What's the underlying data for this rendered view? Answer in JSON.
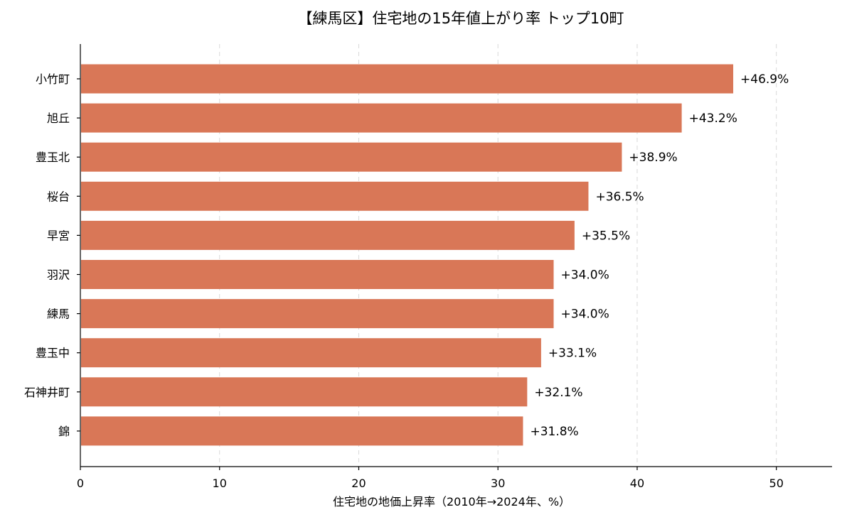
{
  "chart_data": {
    "type": "bar",
    "orientation": "horizontal",
    "title": "【練馬区】住宅地の15年値上がり率 トップ10町",
    "xlabel": "住宅地の地価上昇率（2010年→2024年、%）",
    "ylabel": "",
    "xlim": [
      0,
      54
    ],
    "xticks": [
      0,
      10,
      20,
      30,
      40,
      50
    ],
    "grid": "vertical dashed",
    "categories": [
      "小竹町",
      "旭丘",
      "豊玉北",
      "桜台",
      "早宮",
      "羽沢",
      "練馬",
      "豊玉中",
      "石神井町",
      "錦"
    ],
    "values": [
      46.9,
      43.2,
      38.9,
      36.5,
      35.5,
      34.0,
      34.0,
      33.1,
      32.1,
      31.8
    ],
    "value_labels": [
      "+46.9%",
      "+43.2%",
      "+38.9%",
      "+36.5%",
      "+35.5%",
      "+34.0%",
      "+34.0%",
      "+33.1%",
      "+32.1%",
      "+31.8%"
    ],
    "bar_color": "#d97757"
  }
}
